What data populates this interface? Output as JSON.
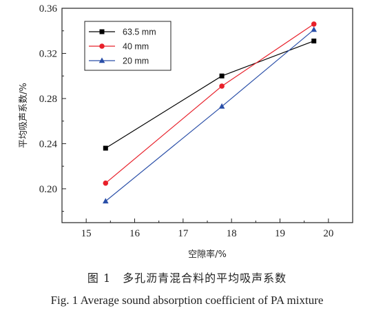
{
  "chart_data": {
    "type": "line",
    "xlabel": "空隙率/%",
    "ylabel": "平均吸声系数/%",
    "xlim": [
      14.5,
      20.5
    ],
    "ylim": [
      0.17,
      0.36
    ],
    "xticks": [
      15,
      16,
      17,
      18,
      19,
      20
    ],
    "yticks": [
      0.2,
      0.24,
      0.28,
      0.32,
      0.36
    ],
    "xtick_labels": [
      "15",
      "16",
      "17",
      "18",
      "19",
      "20"
    ],
    "ytick_labels": [
      "0.20",
      "0.24",
      "0.28",
      "0.32",
      "0.36"
    ],
    "legend_position": "top-left",
    "grid": false,
    "series": [
      {
        "name": "63.5 mm",
        "color": "#000000",
        "marker": "square",
        "x": [
          15.4,
          17.8,
          19.7
        ],
        "y": [
          0.236,
          0.3,
          0.331
        ]
      },
      {
        "name": "40 mm",
        "color": "#e8202a",
        "marker": "circle",
        "x": [
          15.4,
          17.8,
          19.7
        ],
        "y": [
          0.205,
          0.291,
          0.346
        ]
      },
      {
        "name": "20 mm",
        "color": "#2a4fa8",
        "marker": "triangle",
        "x": [
          15.4,
          17.8,
          19.7
        ],
        "y": [
          0.189,
          0.273,
          0.341
        ]
      }
    ]
  },
  "caption": {
    "chinese": "图 1　多孔沥青混合料的平均吸声系数",
    "english": "Fig. 1 Average sound absorption coefficient of PA mixture"
  }
}
